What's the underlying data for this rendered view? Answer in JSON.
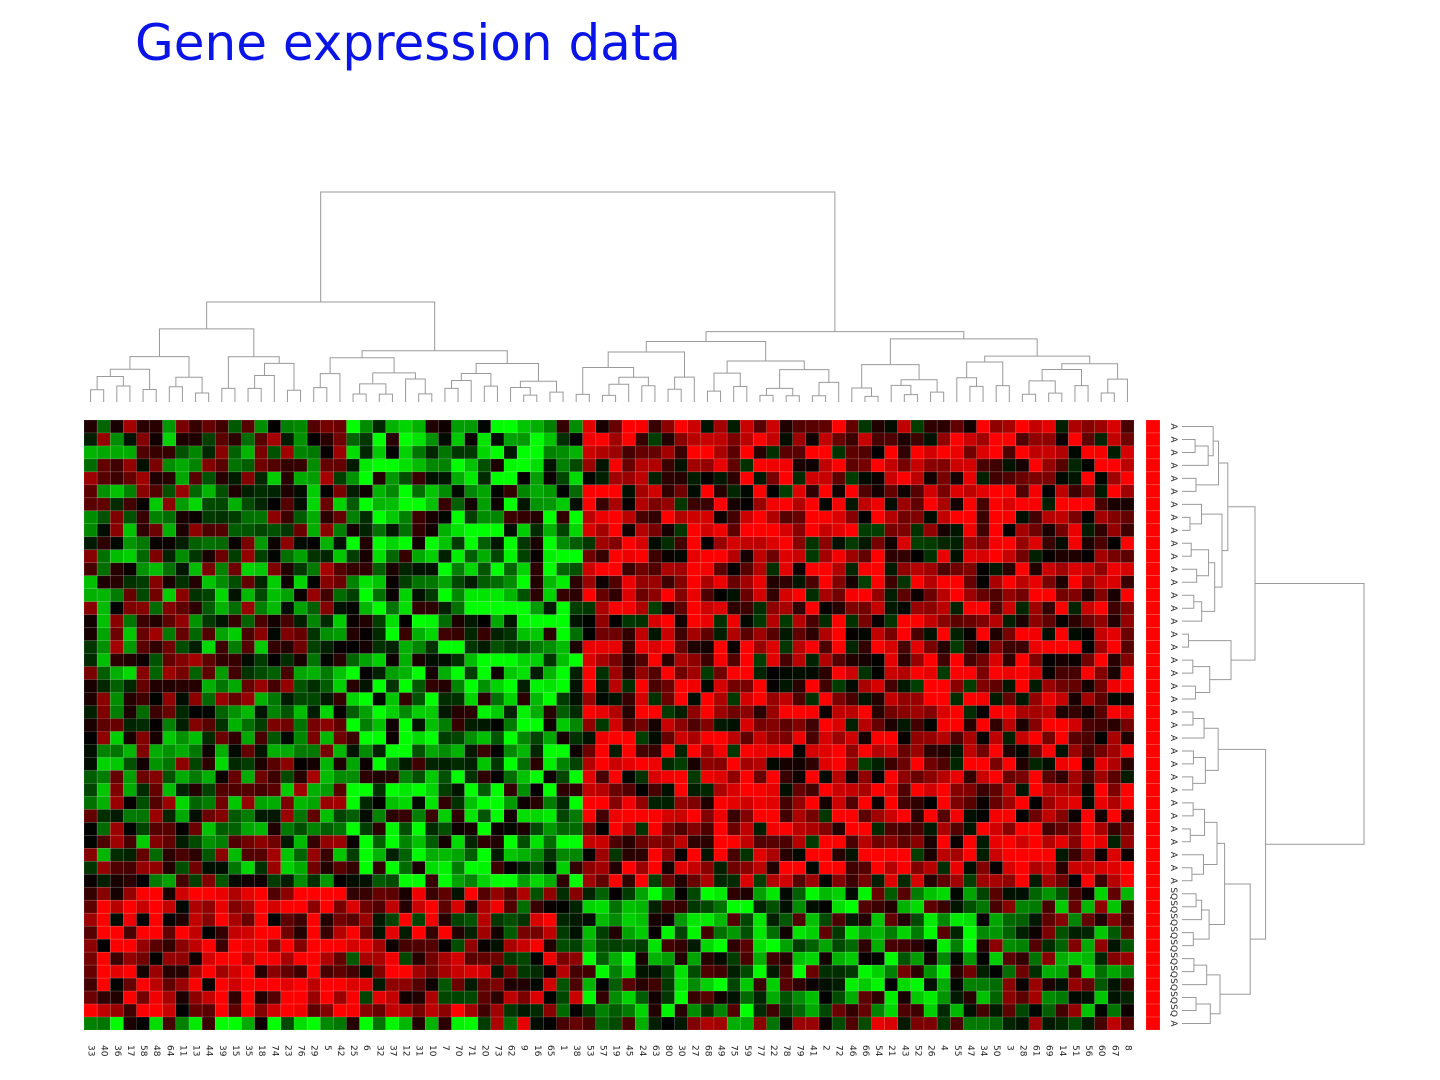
{
  "title": "Gene expression data",
  "chart_data": {
    "type": "heatmap",
    "title": "Gene expression data",
    "color_scale": {
      "low": "#00ff00",
      "mid": "#000000",
      "high": "#ff0000"
    },
    "col_labels": [
      "33",
      "40",
      "36",
      "17",
      "58",
      "48",
      "64",
      "11",
      "13",
      "44",
      "39",
      "15",
      "35",
      "18",
      "74",
      "23",
      "76",
      "29",
      "5",
      "42",
      "25",
      "6",
      "32",
      "37",
      "12",
      "31",
      "10",
      "7",
      "70",
      "71",
      "20",
      "73",
      "62",
      "9",
      "16",
      "65",
      "1",
      "38",
      "53",
      "57",
      "19",
      "45",
      "24",
      "63",
      "80",
      "30",
      "27",
      "68",
      "49",
      "75",
      "59",
      "77",
      "22",
      "78",
      "79",
      "41",
      "2",
      "72",
      "46",
      "66",
      "54",
      "21",
      "43",
      "52",
      "26",
      "4",
      "55",
      "47",
      "34",
      "50",
      "3",
      "28",
      "61",
      "69",
      "14",
      "51",
      "56",
      "60",
      "67",
      "8"
    ],
    "row_labels": [
      "A",
      "A",
      "A",
      "A",
      "A",
      "A",
      "A",
      "A",
      "A",
      "A",
      "A",
      "A",
      "A",
      "A",
      "A",
      "A",
      "A",
      "A",
      "A",
      "A",
      "A",
      "A",
      "A",
      "A",
      "A",
      "A",
      "A",
      "A",
      "A",
      "A",
      "A",
      "A",
      "A",
      "A",
      "A",
      "A",
      "SQ",
      "SQ",
      "SQ",
      "SQ",
      "SQ",
      "SQ",
      "SQ",
      "SQ",
      "SQ",
      "SQ",
      "A"
    ],
    "row_class_color": "#ff0000",
    "column_groups": [
      [
        0,
        19
      ],
      [
        20,
        29
      ],
      [
        30,
        37
      ],
      [
        38,
        54
      ],
      [
        55,
        67
      ],
      [
        68,
        79
      ]
    ],
    "row_groups": [
      [
        0,
        35
      ],
      [
        36,
        45
      ],
      [
        46,
        46
      ]
    ],
    "block_means": [
      [
        -0.1,
        -0.5,
        -0.5,
        0.5,
        0.5,
        0.6
      ],
      [
        0.7,
        0.4,
        0.3,
        -0.4,
        -0.3,
        -0.1
      ],
      [
        -0.4,
        -0.5,
        0.2,
        0.0,
        0.2,
        0.1
      ]
    ],
    "value_range": [
      -1,
      1
    ],
    "dendrograms": [
      "top",
      "right"
    ]
  }
}
